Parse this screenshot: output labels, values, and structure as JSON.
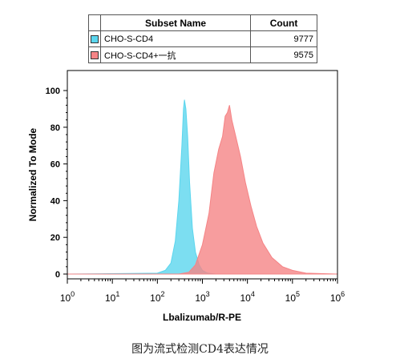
{
  "legend": {
    "header_name": "Subset Name",
    "header_count": "Count",
    "rows": [
      {
        "name": "CHO-S-CD4",
        "count": "9777",
        "color": "#5bd6ee"
      },
      {
        "name": "CHO-S-CD4+一抗",
        "count": "9575",
        "color": "#f58486"
      }
    ]
  },
  "caption": "图为流式检测CD4表达情况",
  "chart_data": {
    "type": "area",
    "xlabel": "Lbalizumab/R-PE",
    "ylabel": "Normalized To Mode",
    "x_scale": "log",
    "xlim": [
      1,
      1000000
    ],
    "ylim": [
      0,
      100
    ],
    "x_ticks": [
      1,
      10,
      100,
      1000,
      10000,
      100000,
      1000000
    ],
    "y_ticks": [
      0,
      20,
      40,
      60,
      80,
      100
    ],
    "grid": false,
    "legend_placement": "top",
    "series": [
      {
        "name": "CHO-S-CD4",
        "color": "#5bd6ee",
        "x": [
          1,
          100,
          150,
          200,
          250,
          300,
          350,
          380,
          400,
          430,
          470,
          520,
          600,
          700,
          850,
          1000,
          1300,
          2000,
          5000,
          1000000
        ],
        "y": [
          0,
          0.5,
          2,
          6,
          18,
          40,
          70,
          90,
          95,
          90,
          75,
          50,
          25,
          12,
          5,
          2,
          0.5,
          0,
          0,
          0
        ]
      },
      {
        "name": "CHO-S-CD4+一抗",
        "color": "#f58486",
        "x": [
          1,
          300,
          500,
          700,
          1000,
          1400,
          1800,
          2300,
          2800,
          3200,
          3600,
          4000,
          4500,
          5500,
          7000,
          9000,
          12000,
          16000,
          22000,
          35000,
          60000,
          100000,
          200000,
          1000000
        ],
        "y": [
          0,
          0,
          1,
          5,
          16,
          33,
          55,
          68,
          75,
          86,
          88,
          92,
          84,
          75,
          64,
          50,
          37,
          26,
          17,
          9,
          4,
          2,
          0.5,
          0
        ]
      }
    ]
  }
}
